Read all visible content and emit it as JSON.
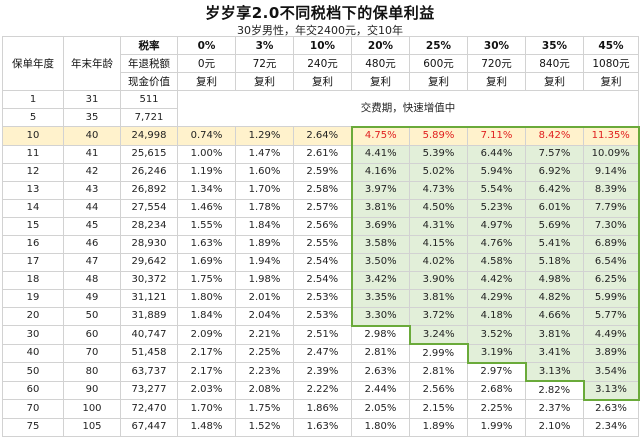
{
  "title": "岁岁享2.0不同税档下的保单利益",
  "subtitle": "30岁男性，年交2400元，交10年",
  "header": {
    "col_year": "保单年度",
    "col_age": "年末年龄",
    "row1_label": "税率",
    "row2_label": "年退税额",
    "row3_label": "现金价值",
    "tax_rates": [
      "0%",
      "3%",
      "10%",
      "20%",
      "25%",
      "30%",
      "35%",
      "45%"
    ],
    "refunds": [
      "0元",
      "72元",
      "240元",
      "480元",
      "600元",
      "720元",
      "840元",
      "1080元"
    ],
    "compound": [
      "复利",
      "复利",
      "复利",
      "复利",
      "复利",
      "复利",
      "复利",
      "复利"
    ]
  },
  "payment_note": "交费期，快速增值中",
  "early_rows": [
    {
      "year": "1",
      "age": "31",
      "cash": "511"
    },
    {
      "year": "5",
      "age": "35",
      "cash": "7,721"
    }
  ],
  "rows": [
    {
      "year": "10",
      "age": "40",
      "cash": "24,998",
      "rates": [
        "0.74%",
        "1.29%",
        "2.64%",
        "4.75%",
        "5.89%",
        "7.11%",
        "8.42%",
        "11.35%"
      ],
      "highlight": true
    },
    {
      "year": "11",
      "age": "41",
      "cash": "25,615",
      "rates": [
        "1.00%",
        "1.47%",
        "2.61%",
        "4.41%",
        "5.39%",
        "6.44%",
        "7.57%",
        "10.09%"
      ]
    },
    {
      "year": "12",
      "age": "42",
      "cash": "26,246",
      "rates": [
        "1.19%",
        "1.60%",
        "2.59%",
        "4.16%",
        "5.02%",
        "5.94%",
        "6.92%",
        "9.14%"
      ]
    },
    {
      "year": "13",
      "age": "43",
      "cash": "26,892",
      "rates": [
        "1.34%",
        "1.70%",
        "2.58%",
        "3.97%",
        "4.73%",
        "5.54%",
        "6.42%",
        "8.39%"
      ]
    },
    {
      "year": "14",
      "age": "44",
      "cash": "27,554",
      "rates": [
        "1.46%",
        "1.78%",
        "2.57%",
        "3.81%",
        "4.50%",
        "5.23%",
        "6.01%",
        "7.79%"
      ]
    },
    {
      "year": "15",
      "age": "45",
      "cash": "28,234",
      "rates": [
        "1.55%",
        "1.84%",
        "2.56%",
        "3.69%",
        "4.31%",
        "4.97%",
        "5.69%",
        "7.30%"
      ]
    },
    {
      "year": "16",
      "age": "46",
      "cash": "28,930",
      "rates": [
        "1.63%",
        "1.89%",
        "2.55%",
        "3.58%",
        "4.15%",
        "4.76%",
        "5.41%",
        "6.89%"
      ]
    },
    {
      "year": "17",
      "age": "47",
      "cash": "29,642",
      "rates": [
        "1.69%",
        "1.94%",
        "2.54%",
        "3.50%",
        "4.02%",
        "4.58%",
        "5.18%",
        "6.54%"
      ]
    },
    {
      "year": "18",
      "age": "48",
      "cash": "30,372",
      "rates": [
        "1.75%",
        "1.98%",
        "2.54%",
        "3.42%",
        "3.90%",
        "4.42%",
        "4.98%",
        "6.25%"
      ]
    },
    {
      "year": "19",
      "age": "49",
      "cash": "31,121",
      "rates": [
        "1.80%",
        "2.01%",
        "2.53%",
        "3.35%",
        "3.81%",
        "4.29%",
        "4.82%",
        "5.99%"
      ]
    },
    {
      "year": "20",
      "age": "50",
      "cash": "31,889",
      "rates": [
        "1.84%",
        "2.04%",
        "2.53%",
        "3.30%",
        "3.72%",
        "4.18%",
        "4.66%",
        "5.77%"
      ]
    },
    {
      "year": "30",
      "age": "60",
      "cash": "40,747",
      "rates": [
        "2.09%",
        "2.21%",
        "2.51%",
        "2.98%",
        "3.24%",
        "3.52%",
        "3.81%",
        "4.49%"
      ]
    },
    {
      "year": "40",
      "age": "70",
      "cash": "51,458",
      "rates": [
        "2.17%",
        "2.25%",
        "2.47%",
        "2.81%",
        "2.99%",
        "3.19%",
        "3.41%",
        "3.89%"
      ]
    },
    {
      "year": "50",
      "age": "80",
      "cash": "63,737",
      "rates": [
        "2.17%",
        "2.23%",
        "2.39%",
        "2.63%",
        "2.81%",
        "2.97%",
        "3.13%",
        "3.54%"
      ]
    },
    {
      "year": "60",
      "age": "90",
      "cash": "73,277",
      "rates": [
        "2.03%",
        "2.08%",
        "2.22%",
        "2.44%",
        "2.56%",
        "2.68%",
        "2.82%",
        "3.13%"
      ]
    },
    {
      "year": "70",
      "age": "100",
      "cash": "72,470",
      "rates": [
        "1.70%",
        "1.75%",
        "1.86%",
        "2.05%",
        "2.15%",
        "2.25%",
        "2.37%",
        "2.63%"
      ]
    },
    {
      "year": "75",
      "age": "105",
      "cash": "67,447",
      "rates": [
        "1.48%",
        "1.52%",
        "1.63%",
        "1.80%",
        "1.89%",
        "1.99%",
        "2.10%",
        "2.34%"
      ]
    }
  ],
  "colors": {
    "green_fill": "#e2efd9",
    "green_border": "#6aaa3a",
    "highlight_row": "#fff2cc",
    "highlight_text": "#e02020"
  }
}
